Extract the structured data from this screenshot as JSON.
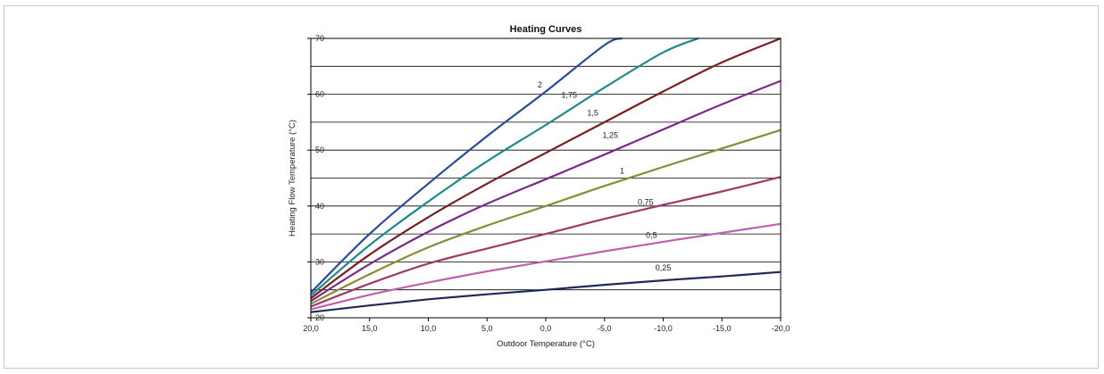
{
  "chart_data": {
    "type": "line",
    "title": "Heating Curves",
    "xlabel": "Outdoor Temperature (°C)",
    "ylabel": "Heating Flow Temperature (°C)",
    "xlim": [
      20,
      -20
    ],
    "ylim": [
      20,
      70
    ],
    "x_ticks": [
      20,
      15,
      10,
      5,
      0,
      -5,
      -10,
      -15,
      -20
    ],
    "x_tick_labels": [
      "20,0",
      "15,0",
      "10,0",
      "5,0",
      "0,0",
      "-5,0",
      "-10,0",
      "-15,0",
      "-20,0"
    ],
    "y_ticks": [
      20,
      30,
      40,
      50,
      60,
      70
    ],
    "y_tick_labels": [
      "20",
      "30",
      "40",
      "50",
      "60",
      "70"
    ],
    "y_gridlines": [
      25,
      30,
      35,
      40,
      45,
      50,
      55,
      60,
      65,
      70
    ],
    "grid": true,
    "legend": "none",
    "series": [
      {
        "name": "0,25",
        "color": "#1f2a5a",
        "x": [
          20,
          15,
          10,
          5,
          0,
          -5,
          -10,
          -15,
          -20
        ],
        "y": [
          21,
          22.2,
          23.3,
          24.2,
          25.0,
          25.9,
          26.7,
          27.4,
          28.2
        ]
      },
      {
        "name": "0,5",
        "color": "#c060b0",
        "x": [
          20,
          15,
          10,
          5,
          0,
          -5,
          -10,
          -15,
          -20
        ],
        "y": [
          21.5,
          24.1,
          26.3,
          28.3,
          30.1,
          31.9,
          33.6,
          35.2,
          36.8
        ]
      },
      {
        "name": "0,75",
        "color": "#a0386a",
        "x": [
          20,
          15,
          10,
          5,
          0,
          -5,
          -10,
          -15,
          -20
        ],
        "y": [
          22.0,
          26.1,
          29.7,
          32.4,
          35.0,
          37.7,
          40.2,
          42.6,
          45.2
        ]
      },
      {
        "name": "1",
        "color": "#8a8a38",
        "x": [
          20,
          15,
          10,
          5,
          0,
          -5,
          -10,
          -15,
          -20
        ],
        "y": [
          22.5,
          27.8,
          32.6,
          36.5,
          40.0,
          43.6,
          47.0,
          50.3,
          53.6
        ]
      },
      {
        "name": "1,25",
        "color": "#7a2a88",
        "x": [
          20,
          15,
          10,
          5,
          0,
          -5,
          -10,
          -15,
          -20
        ],
        "y": [
          23.0,
          29.6,
          35.4,
          40.4,
          44.8,
          49.2,
          53.7,
          58.2,
          62.4
        ]
      },
      {
        "name": "1,5",
        "color": "#7a1e24",
        "x": [
          20,
          15,
          10,
          5,
          0,
          -5,
          -10,
          -15,
          -20
        ],
        "y": [
          23.5,
          31.3,
          38.0,
          44.0,
          49.5,
          55.0,
          60.5,
          65.7,
          70.0
        ]
      },
      {
        "name": "1,75",
        "color": "#1e8a8a",
        "x": [
          20,
          15,
          10,
          5,
          0,
          -5,
          -10,
          -13
        ],
        "y": [
          24.0,
          33.0,
          40.8,
          48.0,
          54.5,
          61.2,
          67.5,
          70.0
        ]
      },
      {
        "name": "2",
        "color": "#2a4a9a",
        "x": [
          20,
          15,
          10,
          5,
          0,
          -5,
          -6.5
        ],
        "y": [
          24.5,
          35.0,
          44.0,
          52.5,
          60.5,
          68.8,
          70.0
        ]
      }
    ],
    "curve_labels": [
      {
        "text": "2",
        "x": 0.5,
        "y": 61.2
      },
      {
        "text": "1,75",
        "x": -2,
        "y": 59.4
      },
      {
        "text": "1,5",
        "x": -4,
        "y": 56.2
      },
      {
        "text": "1,25",
        "x": -5.5,
        "y": 52.2
      },
      {
        "text": "1",
        "x": -6.5,
        "y": 45.8
      },
      {
        "text": "0,75",
        "x": -8.5,
        "y": 40.2
      },
      {
        "text": "0,5",
        "x": -9,
        "y": 34.3
      },
      {
        "text": "0,25",
        "x": -10,
        "y": 28.5
      }
    ]
  }
}
